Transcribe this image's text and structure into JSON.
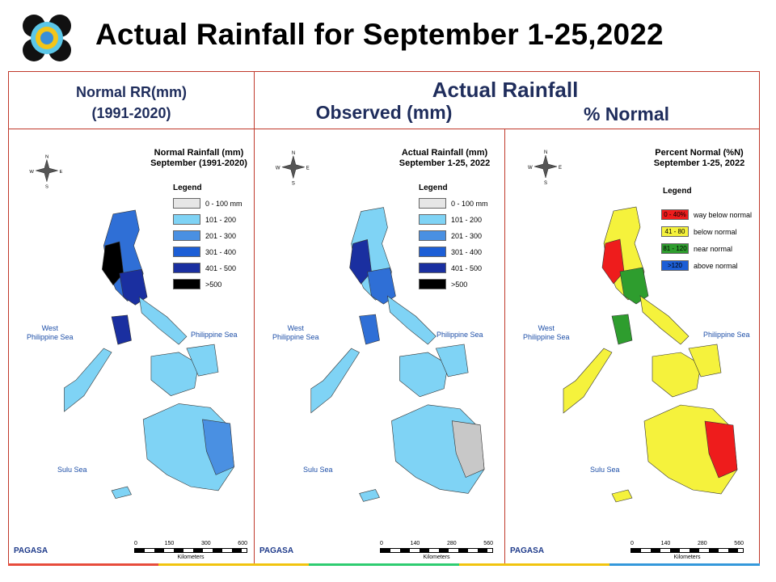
{
  "title": "Actual Rainfall for September 1-25,2022",
  "headers": {
    "normal_line1": "Normal RR(mm)",
    "normal_line2": "(1991-2020)",
    "actual": "Actual Rainfall",
    "observed": "Observed (mm)",
    "percent": "% Normal"
  },
  "panels": [
    {
      "title_line1": "Normal Rainfall (mm)",
      "title_line2": "September (1991-2020)",
      "legend_title": "Legend",
      "legend": [
        {
          "label": "0 - 100 mm",
          "color": "#e6e6e6"
        },
        {
          "label": "101 - 200",
          "color": "#7fd3f5"
        },
        {
          "label": "201 - 300",
          "color": "#4a90e2"
        },
        {
          "label": "301 - 400",
          "color": "#1c5ed6"
        },
        {
          "label": "401 - 500",
          "color": "#1a2fa0"
        },
        {
          "label": ">500",
          "color": "#000000"
        }
      ],
      "sea_west": "West\nPhilippine Sea",
      "sea_east": "Philippine Sea",
      "sea_south": "Sulu Sea",
      "scale_labels": [
        "0",
        "150",
        "300",
        "600"
      ],
      "scale_unit": "Kilometers"
    },
    {
      "title_line1": "Actual Rainfall (mm)",
      "title_line2": "September 1-25, 2022",
      "legend_title": "Legend",
      "legend": [
        {
          "label": "0 - 100 mm",
          "color": "#e6e6e6"
        },
        {
          "label": "101 - 200",
          "color": "#7fd3f5"
        },
        {
          "label": "201 - 300",
          "color": "#4a90e2"
        },
        {
          "label": "301 - 400",
          "color": "#1c5ed6"
        },
        {
          "label": "401 - 500",
          "color": "#1a2fa0"
        },
        {
          "label": ">500",
          "color": "#000000"
        }
      ],
      "sea_west": "West\nPhilippine Sea",
      "sea_east": "Philippine Sea",
      "sea_south": "Sulu Sea",
      "scale_labels": [
        "0",
        "140",
        "280",
        "560"
      ],
      "scale_unit": "Kilometers"
    },
    {
      "title_line1": "Percent Normal (%N)",
      "title_line2": "September 1-25, 2022",
      "legend_title": "Legend",
      "legend": [
        {
          "label": "way below normal",
          "swatch": "0 - 40%",
          "color": "#ee1c1c"
        },
        {
          "label": "below normal",
          "swatch": "41 - 80",
          "color": "#f5f23c"
        },
        {
          "label": "near normal",
          "swatch": "81 - 120",
          "color": "#2e9d2e"
        },
        {
          "label": "above normal",
          "swatch": ">120",
          "color": "#1c5ed6"
        }
      ],
      "sea_west": "West\nPhilippine Sea",
      "sea_east": "Philippine Sea",
      "sea_south": "Sulu Sea",
      "scale_labels": [
        "0",
        "140",
        "280",
        "560"
      ],
      "scale_unit": "Kilometers"
    }
  ],
  "compass": {
    "n": "N",
    "s": "S",
    "e": "E",
    "w": "W"
  },
  "footer_logo": "PAGASA",
  "colors": {
    "frame": "#c0392b",
    "header_text": "#1f2d5c"
  }
}
